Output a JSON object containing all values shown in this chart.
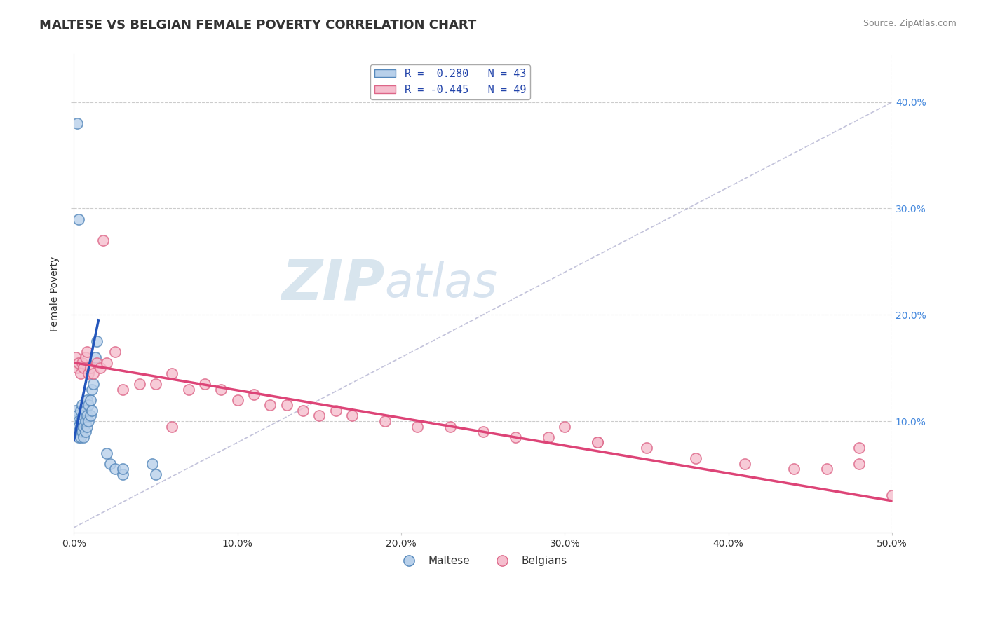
{
  "title": "MALTESE VS BELGIAN FEMALE POVERTY CORRELATION CHART",
  "source": "Source: ZipAtlas.com",
  "ylabel": "Female Poverty",
  "xlim": [
    0.0,
    0.5
  ],
  "ylim": [
    -0.005,
    0.445
  ],
  "xticks": [
    0.0,
    0.1,
    0.2,
    0.3,
    0.4,
    0.5
  ],
  "xtick_labels": [
    "0.0%",
    "10.0%",
    "20.0%",
    "30.0%",
    "40.0%",
    "50.0%"
  ],
  "ytick_labels_right": [
    "10.0%",
    "20.0%",
    "30.0%",
    "40.0%"
  ],
  "ytick_vals_right": [
    0.1,
    0.2,
    0.3,
    0.4
  ],
  "maltese_color": "#b8d0ea",
  "belgian_color": "#f5bece",
  "maltese_edge": "#5588bb",
  "belgian_edge": "#dd6688",
  "trend_blue": "#2255bb",
  "trend_pink": "#dd4477",
  "legend_blue_label": "R =  0.280   N = 43",
  "legend_pink_label": "R = -0.445   N = 49",
  "maltese_legend": "Maltese",
  "belgians_legend": "Belgians",
  "watermark_zip": "ZIP",
  "watermark_atlas": "atlas",
  "background_color": "#ffffff",
  "grid_color": "#cccccc",
  "dot_size": 120,
  "maltese_x": [
    0.001,
    0.001,
    0.002,
    0.002,
    0.002,
    0.003,
    0.003,
    0.003,
    0.003,
    0.004,
    0.004,
    0.004,
    0.004,
    0.005,
    0.005,
    0.005,
    0.006,
    0.006,
    0.006,
    0.007,
    0.007,
    0.007,
    0.008,
    0.008,
    0.008,
    0.009,
    0.009,
    0.01,
    0.01,
    0.011,
    0.011,
    0.012,
    0.013,
    0.014,
    0.02,
    0.022,
    0.025,
    0.03,
    0.03,
    0.048,
    0.05,
    0.002,
    0.003
  ],
  "maltese_y": [
    0.11,
    0.095,
    0.105,
    0.095,
    0.09,
    0.1,
    0.095,
    0.09,
    0.085,
    0.11,
    0.1,
    0.095,
    0.085,
    0.115,
    0.1,
    0.09,
    0.105,
    0.095,
    0.085,
    0.11,
    0.1,
    0.09,
    0.12,
    0.105,
    0.095,
    0.115,
    0.1,
    0.12,
    0.105,
    0.13,
    0.11,
    0.135,
    0.16,
    0.175,
    0.07,
    0.06,
    0.055,
    0.05,
    0.055,
    0.06,
    0.05,
    0.38,
    0.29
  ],
  "belgian_x": [
    0.001,
    0.002,
    0.003,
    0.004,
    0.005,
    0.006,
    0.007,
    0.008,
    0.009,
    0.01,
    0.012,
    0.014,
    0.016,
    0.018,
    0.02,
    0.025,
    0.03,
    0.04,
    0.05,
    0.06,
    0.07,
    0.08,
    0.09,
    0.1,
    0.11,
    0.12,
    0.13,
    0.14,
    0.15,
    0.16,
    0.17,
    0.19,
    0.21,
    0.23,
    0.25,
    0.27,
    0.29,
    0.32,
    0.35,
    0.38,
    0.41,
    0.44,
    0.46,
    0.48,
    0.5,
    0.3,
    0.32,
    0.48,
    0.06
  ],
  "belgian_y": [
    0.16,
    0.15,
    0.155,
    0.145,
    0.155,
    0.15,
    0.16,
    0.165,
    0.145,
    0.15,
    0.145,
    0.155,
    0.15,
    0.27,
    0.155,
    0.165,
    0.13,
    0.135,
    0.135,
    0.145,
    0.13,
    0.135,
    0.13,
    0.12,
    0.125,
    0.115,
    0.115,
    0.11,
    0.105,
    0.11,
    0.105,
    0.1,
    0.095,
    0.095,
    0.09,
    0.085,
    0.085,
    0.08,
    0.075,
    0.065,
    0.06,
    0.055,
    0.055,
    0.06,
    0.03,
    0.095,
    0.08,
    0.075,
    0.095
  ],
  "blue_trend_x": [
    0.0,
    0.015
  ],
  "blue_trend_y_start": 0.082,
  "blue_trend_y_end": 0.195,
  "pink_trend_x": [
    0.0,
    0.5
  ],
  "pink_trend_y_start": 0.155,
  "pink_trend_y_end": 0.025
}
